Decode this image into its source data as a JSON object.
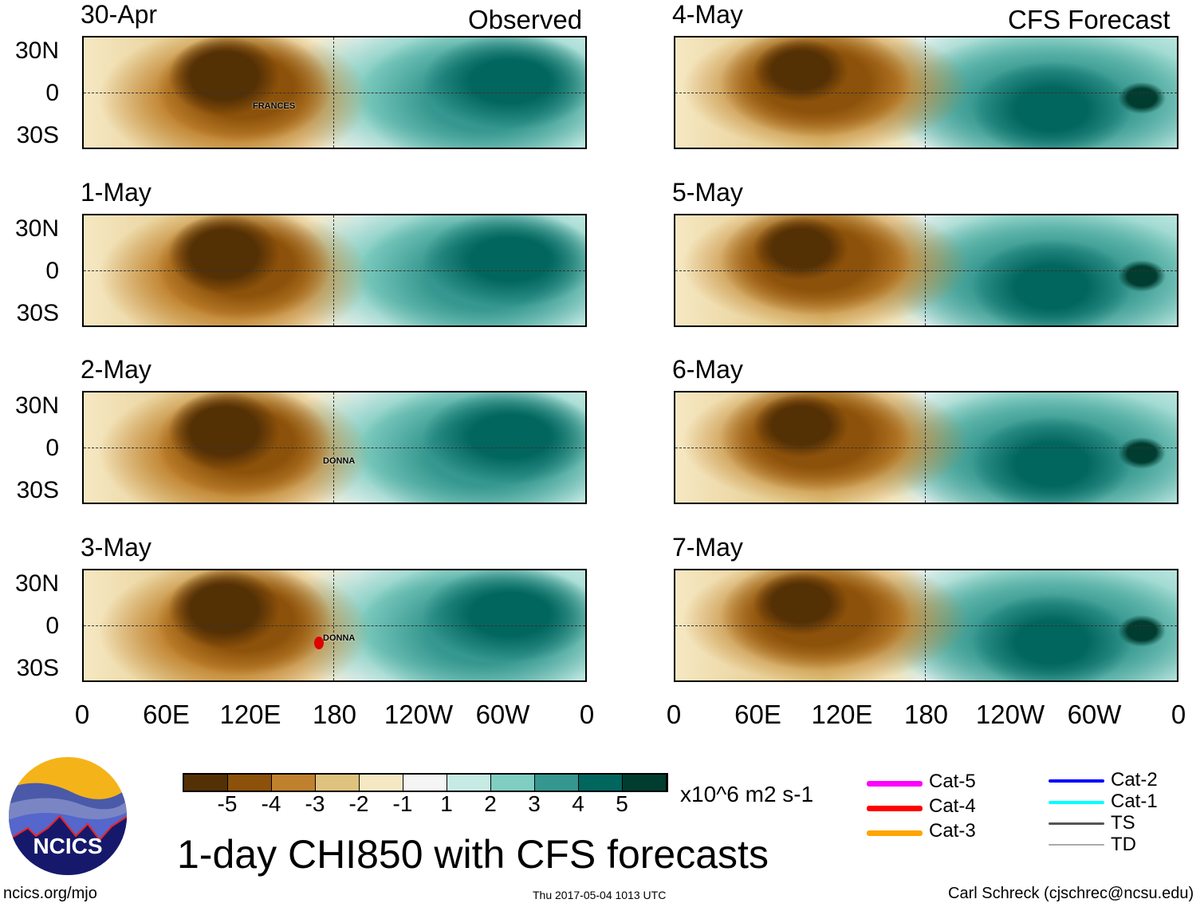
{
  "left_header": "Observed",
  "right_header": "CFS Forecast",
  "left_dates": [
    "30-Apr",
    "1-May",
    "2-May",
    "3-May"
  ],
  "right_dates": [
    "4-May",
    "5-May",
    "6-May",
    "7-May"
  ],
  "lat_labels": [
    "30N",
    "0",
    "30S"
  ],
  "lon_labels": [
    "0",
    "60E",
    "120E",
    "180",
    "120W",
    "60W",
    "0"
  ],
  "storms": {
    "frances": "FRANCES",
    "donna1": "DONNA",
    "donna2": "DONNA"
  },
  "colorbar": {
    "labels": [
      "-5",
      "-4",
      "-3",
      "-2",
      "-1",
      "1",
      "2",
      "3",
      "4",
      "5"
    ],
    "colors": [
      "#543005",
      "#8c510a",
      "#bf812d",
      "#dfc27d",
      "#f6e8c3",
      "#f5f5f5",
      "#c7eae5",
      "#80cdc1",
      "#35978f",
      "#01665e",
      "#003c30"
    ],
    "units": "x10^6 m2 s-1"
  },
  "title": "1-day CHI850 with CFS forecasts",
  "legend": [
    {
      "label": "Cat-5",
      "color": "#ff00ff"
    },
    {
      "label": "Cat-4",
      "color": "#ff0000"
    },
    {
      "label": "Cat-3",
      "color": "#ffa500"
    },
    {
      "label": "Cat-2",
      "color": "#0000ff"
    },
    {
      "label": "Cat-1",
      "color": "#00ffff"
    },
    {
      "label": "TS",
      "color": "#555555"
    },
    {
      "label": "TD",
      "color": "#aaaaaa"
    }
  ],
  "logo_text": "NCICS",
  "url": "ncics.org/mjo",
  "timestamp": "Thu 2017-05-04 1013 UTC",
  "credit": "Carl Schreck (cjschrec@ncsu.edu)"
}
